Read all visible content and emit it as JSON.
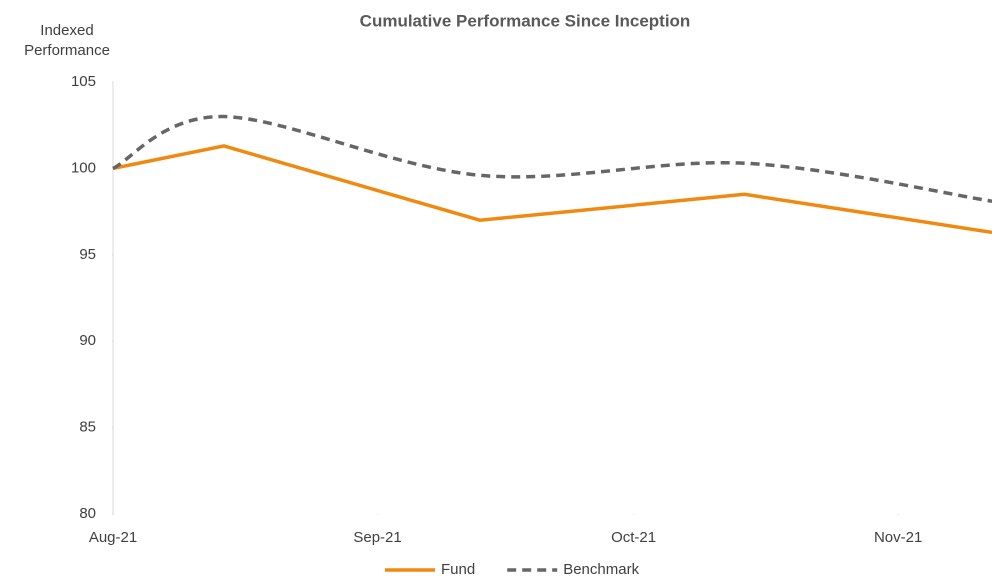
{
  "chart_data": {
    "type": "line",
    "title": "Cumulative Performance Since Inception",
    "ylabel": [
      "Indexed",
      "Performance"
    ],
    "x": [
      0,
      13,
      43,
      74,
      103
    ],
    "xlim": [
      0,
      103
    ],
    "xticks": [
      {
        "value": 0,
        "label": "Aug-21"
      },
      {
        "value": 31,
        "label": "Sep-21"
      },
      {
        "value": 61,
        "label": "Oct-21"
      },
      {
        "value": 92,
        "label": "Nov-21"
      }
    ],
    "ylim": [
      80,
      105
    ],
    "yticks": [
      80,
      85,
      90,
      95,
      100,
      105
    ],
    "grid": false,
    "legend": "bottom",
    "series": [
      {
        "name": "Fund",
        "color": "#f0890f",
        "dashed": false,
        "smooth": false,
        "values": [
          100,
          101.3,
          97.0,
          98.5,
          96.3
        ]
      },
      {
        "name": "Benchmark",
        "color": "#666666",
        "dashed": true,
        "smooth": true,
        "values": [
          100,
          103.0,
          99.6,
          100.3,
          98.1
        ]
      }
    ]
  }
}
